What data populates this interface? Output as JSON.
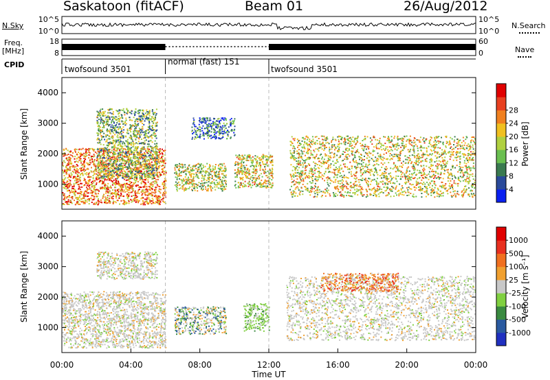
{
  "header": {
    "title": "Saskatoon (fitACF)",
    "beam": "Beam 01",
    "date": "26/Aug/2012"
  },
  "side_labels": {
    "nsky": "N.Sky",
    "freq_line1": "Freq.",
    "freq_line2": "[MHz]",
    "cpid": "CPID",
    "nsearch": "N.Search",
    "nave": "Nave"
  },
  "chart_data": [
    {
      "type": "line",
      "name": "noise",
      "left_ticks": [
        "10^5",
        "10^0"
      ],
      "right_ticks": [
        "10^5",
        "10^0"
      ]
    },
    {
      "type": "line",
      "name": "frequency",
      "left_ticks": [
        "18",
        "8"
      ],
      "right_ticks": [
        "60",
        "0"
      ],
      "segments": [
        {
          "start_h": 0,
          "end_h": 6.0,
          "style": "solid"
        },
        {
          "start_h": 6.0,
          "end_h": 12.0,
          "style": "dotted"
        },
        {
          "start_h": 12.0,
          "end_h": 24.0,
          "style": "solid"
        }
      ]
    },
    {
      "type": "table",
      "name": "cpid",
      "segments": [
        {
          "label": "twofsound 3501",
          "start_h": 0,
          "end_h": 6.0
        },
        {
          "label": "normal (fast) 151",
          "start_h": 6.0,
          "end_h": 12.0
        },
        {
          "label": "twofsound 3501",
          "start_h": 12.0,
          "end_h": 24.0
        }
      ]
    },
    {
      "type": "heatmap",
      "name": "power",
      "ylabel": "Slant Range [km]",
      "yticks": [
        1000,
        2000,
        3000,
        4000
      ],
      "ylim": [
        180,
        4500
      ],
      "colorbar": {
        "label": "Power [dB]",
        "ticks": [
          "4",
          "8",
          "12",
          "16",
          "20",
          "24",
          "28"
        ],
        "colors": [
          "#0a20f0",
          "#2a4a9a",
          "#3a7a50",
          "#6abf50",
          "#b0d040",
          "#f0c020",
          "#f08020",
          "#e84020",
          "#e00000"
        ]
      },
      "features": [
        {
          "start_h": 0.0,
          "end_h": 6.0,
          "range_low_km": 350,
          "range_high_km": 2200,
          "level": 0.75
        },
        {
          "start_h": 2.0,
          "end_h": 5.5,
          "range_low_km": 1200,
          "range_high_km": 3500,
          "level": 0.4
        },
        {
          "start_h": 7.5,
          "end_h": 10.0,
          "range_low_km": 2500,
          "range_high_km": 3200,
          "level": 0.2
        },
        {
          "start_h": 6.5,
          "end_h": 9.5,
          "range_low_km": 800,
          "range_high_km": 1700,
          "level": 0.5
        },
        {
          "start_h": 10.0,
          "end_h": 12.2,
          "range_low_km": 900,
          "range_high_km": 2000,
          "level": 0.55
        },
        {
          "start_h": 13.2,
          "end_h": 24.0,
          "range_low_km": 600,
          "range_high_km": 2600,
          "level": 0.55
        }
      ]
    },
    {
      "type": "heatmap",
      "name": "velocity",
      "ylabel": "Slant Range [km]",
      "yticks": [
        1000,
        2000,
        3000,
        4000
      ],
      "ylim": [
        180,
        4500
      ],
      "xlabel": "Time UT",
      "xticks": [
        "00:00",
        "04:00",
        "08:00",
        "12:00",
        "16:00",
        "20:00",
        "00:00"
      ],
      "xlim": [
        0,
        24
      ],
      "colorbar": {
        "label": "Velocity [m s⁻¹]",
        "ticks": [
          "1000",
          "500",
          "100",
          "25",
          "-25",
          "-100",
          "-500",
          "-1000"
        ],
        "colors": [
          "#2030c0",
          "#2a5aa0",
          "#3a8a40",
          "#80d040",
          "#c8c8c8",
          "#f0a030",
          "#f07020",
          "#e83020",
          "#e00000"
        ]
      },
      "features": [
        {
          "start_h": 0.0,
          "end_h": 6.0,
          "range_low_km": 350,
          "range_high_km": 2200,
          "tone": "grey"
        },
        {
          "start_h": 2.0,
          "end_h": 5.5,
          "range_low_km": 2600,
          "range_high_km": 3500,
          "tone": "grey"
        },
        {
          "start_h": 6.5,
          "end_h": 9.5,
          "range_low_km": 800,
          "range_high_km": 1700,
          "tone": "mixed"
        },
        {
          "start_h": 10.5,
          "end_h": 12.0,
          "range_low_km": 900,
          "range_high_km": 1800,
          "tone": "green"
        },
        {
          "start_h": 13.0,
          "end_h": 24.0,
          "range_low_km": 600,
          "range_high_km": 2700,
          "tone": "grey"
        },
        {
          "start_h": 15.0,
          "end_h": 19.5,
          "range_low_km": 2200,
          "range_high_km": 2800,
          "tone": "orange"
        }
      ]
    }
  ]
}
